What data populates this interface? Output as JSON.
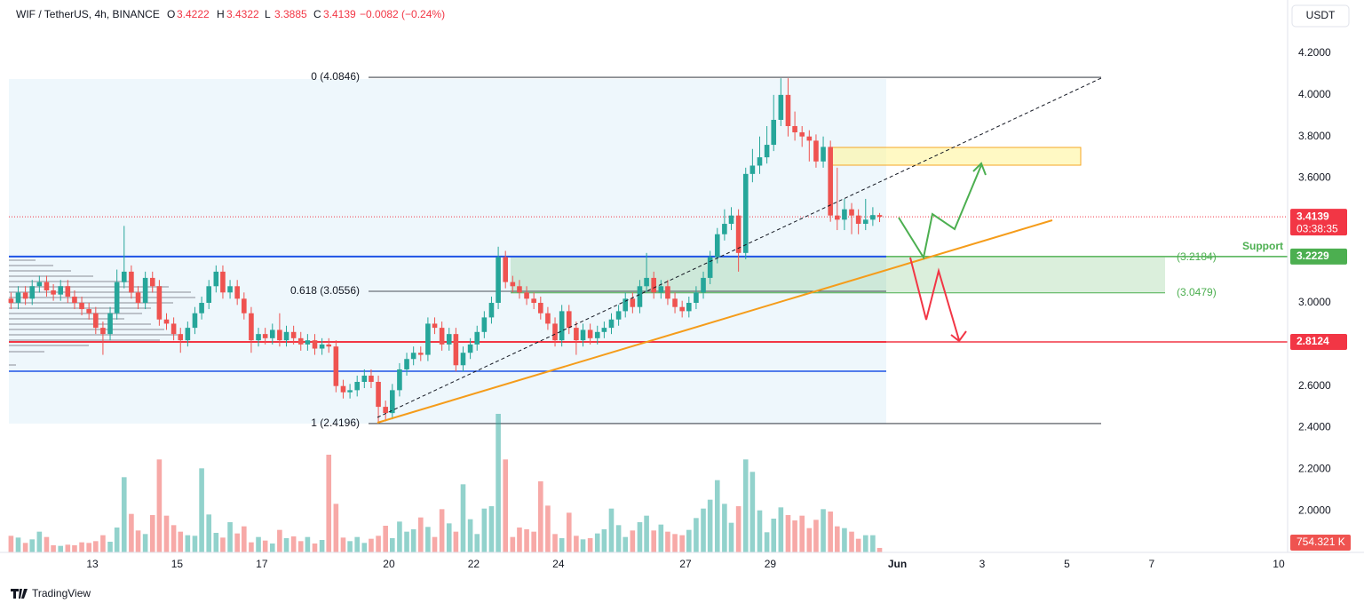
{
  "chart_data": {
    "type": "candlestick",
    "header": {
      "symbol": "WIF / TetherUS, 4h, BINANCE",
      "ohlc": [
        [
          "O",
          "3.4222"
        ],
        [
          "H",
          "3.4322"
        ],
        [
          "L",
          "3.3885"
        ],
        [
          "C",
          "3.4139"
        ]
      ],
      "change": "−0.0082 (−0.24%)"
    },
    "currency": "USDT",
    "up_color": "#26a69a",
    "down_color": "#ef5350",
    "x": [
      11.08,
      11.25,
      11.42,
      11.58,
      11.75,
      11.92,
      12.08,
      12.25,
      12.42,
      12.58,
      12.75,
      12.92,
      13.08,
      13.25,
      13.42,
      13.58,
      13.75,
      13.92,
      14.08,
      14.25,
      14.42,
      14.58,
      14.75,
      14.92,
      15.08,
      15.25,
      15.42,
      15.58,
      15.75,
      15.92,
      16.08,
      16.25,
      16.42,
      16.58,
      16.75,
      16.92,
      17.08,
      17.25,
      17.42,
      17.58,
      17.75,
      17.92,
      18.08,
      18.25,
      18.42,
      18.58,
      18.75,
      18.92,
      19.08,
      19.25,
      19.42,
      19.58,
      19.75,
      19.92,
      20.08,
      20.25,
      20.42,
      20.58,
      20.75,
      20.92,
      21.08,
      21.25,
      21.42,
      21.58,
      21.75,
      21.92,
      22.08,
      22.25,
      22.42,
      22.58,
      22.75,
      22.92,
      23.08,
      23.25,
      23.42,
      23.58,
      23.75,
      23.92,
      24.08,
      24.25,
      24.42,
      24.58,
      24.75,
      24.92,
      25.08,
      25.25,
      25.42,
      25.58,
      25.75,
      25.92,
      26.08,
      26.25,
      26.42,
      26.58,
      26.75,
      26.92,
      27.08,
      27.25,
      27.42,
      27.58,
      27.75,
      27.92,
      28.08,
      28.25,
      28.42,
      28.58,
      28.75,
      28.92,
      29.08,
      29.25,
      29.42,
      29.58,
      29.75,
      29.92,
      30.08,
      30.25,
      30.42,
      30.58,
      30.75,
      30.92,
      31.08,
      31.25,
      31.42,
      31.58
    ],
    "open": [
      3.02,
      3.0,
      3.05,
      3.02,
      3.08,
      3.1,
      3.06,
      3.04,
      3.08,
      3.03,
      3.0,
      2.97,
      2.95,
      2.88,
      2.85,
      2.95,
      3.1,
      3.15,
      3.05,
      3.0,
      3.12,
      3.08,
      2.92,
      2.9,
      2.85,
      2.82,
      2.88,
      2.95,
      3.0,
      3.08,
      3.15,
      3.05,
      3.08,
      3.02,
      2.95,
      2.82,
      2.85,
      2.83,
      2.87,
      2.82,
      2.86,
      2.83,
      2.8,
      2.82,
      2.78,
      2.8,
      2.79,
      2.6,
      2.57,
      2.58,
      2.62,
      2.65,
      2.62,
      2.5,
      2.47,
      2.58,
      2.68,
      2.73,
      2.76,
      2.75,
      2.9,
      2.88,
      2.8,
      2.85,
      2.7,
      2.76,
      2.8,
      2.86,
      2.93,
      3.0,
      3.22,
      3.1,
      3.08,
      3.05,
      3.02,
      3.0,
      2.95,
      2.9,
      2.82,
      2.96,
      2.88,
      2.82,
      2.87,
      2.83,
      2.86,
      2.88,
      2.92,
      2.96,
      3.02,
      2.98,
      3.08,
      3.12,
      3.05,
      3.08,
      3.02,
      2.98,
      2.96,
      3.0,
      3.05,
      3.12,
      3.22,
      3.33,
      3.38,
      3.42,
      3.24,
      3.62,
      3.66,
      3.7,
      3.76,
      3.88,
      4.0,
      3.85,
      3.82,
      3.8,
      3.78,
      3.68,
      3.75,
      3.42,
      3.4,
      3.45,
      3.42,
      3.38,
      3.4,
      3.4222
    ],
    "high": [
      3.05,
      3.08,
      3.08,
      3.11,
      3.13,
      3.13,
      3.09,
      3.11,
      3.11,
      3.06,
      3.03,
      3.0,
      2.98,
      2.91,
      2.98,
      3.16,
      3.37,
      3.18,
      3.08,
      3.15,
      3.15,
      3.11,
      2.95,
      2.93,
      2.88,
      2.91,
      2.98,
      3.03,
      3.11,
      3.18,
      3.18,
      3.11,
      3.11,
      3.05,
      2.98,
      2.88,
      2.88,
      2.9,
      2.95,
      2.89,
      2.89,
      2.86,
      2.85,
      2.85,
      2.83,
      2.83,
      2.82,
      2.63,
      2.61,
      2.65,
      2.68,
      2.68,
      2.65,
      2.53,
      2.61,
      2.71,
      2.76,
      2.79,
      2.79,
      2.93,
      2.93,
      2.91,
      2.88,
      2.88,
      2.79,
      2.83,
      2.89,
      2.96,
      3.03,
      3.27,
      3.25,
      3.13,
      3.11,
      3.08,
      3.05,
      3.03,
      2.98,
      2.93,
      2.99,
      2.99,
      2.91,
      2.9,
      2.9,
      2.89,
      2.91,
      2.95,
      2.99,
      3.05,
      3.05,
      3.11,
      3.24,
      3.15,
      3.11,
      3.11,
      3.05,
      3.01,
      3.03,
      3.08,
      3.15,
      3.25,
      3.36,
      3.45,
      3.46,
      3.45,
      3.65,
      3.74,
      3.8,
      3.85,
      4.0,
      4.08,
      4.08,
      3.92,
      3.85,
      3.83,
      3.81,
      3.8,
      3.78,
      3.65,
      3.5,
      3.48,
      3.45,
      3.5,
      3.46,
      3.4322
    ],
    "low": [
      2.97,
      2.97,
      2.99,
      2.99,
      3.05,
      3.03,
      3.01,
      3.01,
      3.0,
      2.97,
      2.94,
      2.92,
      2.85,
      2.75,
      2.82,
      2.92,
      3.07,
      3.02,
      2.97,
      2.97,
      3.05,
      2.89,
      2.87,
      2.82,
      2.76,
      2.79,
      2.85,
      2.92,
      2.97,
      3.05,
      3.02,
      3.02,
      2.99,
      2.92,
      2.76,
      2.79,
      2.8,
      2.8,
      2.79,
      2.79,
      2.8,
      2.77,
      2.77,
      2.75,
      2.75,
      2.76,
      2.57,
      2.54,
      2.54,
      2.55,
      2.59,
      2.59,
      2.42,
      2.43,
      2.44,
      2.55,
      2.65,
      2.7,
      2.72,
      2.72,
      2.85,
      2.77,
      2.77,
      2.67,
      2.67,
      2.73,
      2.77,
      2.83,
      2.9,
      2.97,
      3.07,
      3.05,
      3.02,
      2.99,
      2.97,
      2.92,
      2.87,
      2.79,
      2.79,
      2.85,
      2.75,
      2.79,
      2.8,
      2.8,
      2.83,
      2.85,
      2.89,
      2.93,
      2.95,
      2.95,
      3.05,
      3.02,
      3.02,
      2.99,
      2.95,
      2.93,
      2.93,
      2.97,
      3.02,
      3.09,
      3.19,
      3.3,
      3.35,
      3.15,
      3.21,
      3.58,
      3.62,
      3.67,
      3.73,
      3.85,
      3.8,
      3.78,
      3.75,
      3.68,
      3.65,
      3.65,
      3.39,
      3.35,
      3.35,
      3.33,
      3.33,
      3.35,
      3.37,
      3.3885
    ],
    "close": [
      3.0,
      3.05,
      3.02,
      3.08,
      3.1,
      3.06,
      3.04,
      3.08,
      3.03,
      3.0,
      2.97,
      2.95,
      2.88,
      2.85,
      2.95,
      3.1,
      3.15,
      3.05,
      3.0,
      3.12,
      3.08,
      2.92,
      2.9,
      2.85,
      2.82,
      2.88,
      2.95,
      3.0,
      3.08,
      3.15,
      3.05,
      3.08,
      3.02,
      2.95,
      2.82,
      2.85,
      2.83,
      2.87,
      2.82,
      2.86,
      2.83,
      2.8,
      2.82,
      2.78,
      2.8,
      2.79,
      2.6,
      2.57,
      2.58,
      2.62,
      2.65,
      2.62,
      2.5,
      2.47,
      2.58,
      2.68,
      2.73,
      2.76,
      2.75,
      2.9,
      2.88,
      2.8,
      2.85,
      2.7,
      2.76,
      2.8,
      2.86,
      2.93,
      3.0,
      3.22,
      3.1,
      3.08,
      3.05,
      3.02,
      3.0,
      2.95,
      2.9,
      2.82,
      2.96,
      2.88,
      2.82,
      2.87,
      2.83,
      2.86,
      2.88,
      2.92,
      2.96,
      3.02,
      2.98,
      3.08,
      3.12,
      3.05,
      3.08,
      3.02,
      2.98,
      2.96,
      3.0,
      3.05,
      3.12,
      3.22,
      3.33,
      3.38,
      3.42,
      3.24,
      3.62,
      3.66,
      3.7,
      3.76,
      3.88,
      4.0,
      3.85,
      3.82,
      3.8,
      3.78,
      3.68,
      3.75,
      3.42,
      3.4,
      3.45,
      3.42,
      3.38,
      3.4,
      3.4221,
      3.4139
    ],
    "volume": [
      2800,
      2500,
      1600,
      2200,
      3500,
      2600,
      1200,
      1100,
      1300,
      1200,
      1700,
      1600,
      1900,
      2900,
      1800,
      4200,
      12700,
      6500,
      3700,
      3100,
      6300,
      15700,
      6200,
      4600,
      3500,
      2900,
      2800,
      14200,
      6400,
      3300,
      2500,
      5100,
      3200,
      4400,
      1700,
      2600,
      2000,
      1500,
      3800,
      2400,
      2700,
      1900,
      2600,
      1500,
      2100,
      16500,
      8200,
      2500,
      1900,
      2600,
      1600,
      2300,
      2800,
      4500,
      2400,
      5200,
      3500,
      3900,
      5900,
      4300,
      2600,
      7300,
      4900,
      3500,
      11500,
      5600,
      3100,
      7400,
      7800,
      23400,
      15700,
      2600,
      4200,
      3900,
      3500,
      12000,
      7900,
      3100,
      2400,
      6700,
      2800,
      2200,
      2400,
      3200,
      3900,
      7400,
      4600,
      2600,
      3700,
      5100,
      6200,
      3700,
      4700,
      3500,
      3100,
      2900,
      3800,
      5800,
      7400,
      8900,
      12200,
      8200,
      5000,
      7800,
      15700,
      13600,
      7100,
      3400,
      5700,
      7600,
      6300,
      5400,
      6200,
      4100,
      5500,
      7300,
      6900,
      4400,
      4100,
      3500,
      2300,
      2900,
      2900,
      754
    ],
    "volume_lim": [
      0,
      24000
    ],
    "volume_label": "754.321 K",
    "xlim": [
      11.03,
      41.21
    ],
    "xticks": [
      13,
      15,
      17,
      20,
      22,
      24,
      27,
      29,
      {
        "value": 32,
        "label": "Jun"
      },
      {
        "value": 34,
        "label": "3"
      },
      {
        "value": 36,
        "label": "5"
      },
      {
        "value": 38,
        "label": "7"
      },
      {
        "value": 41,
        "label": "10"
      }
    ],
    "ylim": [
      1.8,
      4.45
    ],
    "yticks": [
      {
        "value": 2,
        "label": "2.0000"
      },
      {
        "value": 2.2,
        "label": "2.2000"
      },
      {
        "value": 2.4,
        "label": "2.4000"
      },
      {
        "value": 2.6,
        "label": "2.6000"
      },
      {
        "value": 2.8,
        "label": "2.8000"
      },
      {
        "value": 3,
        "label": "3.0000"
      },
      {
        "value": 3.2,
        "label": "3.2000"
      },
      {
        "value": 3.4,
        "label": "3.4000"
      },
      {
        "value": 3.6,
        "label": "3.6000"
      },
      {
        "value": 3.8,
        "label": "3.8000"
      },
      {
        "value": 4,
        "label": "4.0000"
      },
      {
        "value": 4.2,
        "label": "4.2000"
      }
    ],
    "fib_levels": [
      {
        "label": "0 (4.0846)",
        "value": 4.0846
      },
      {
        "label": "0.618 (3.0556)",
        "value": 3.0556
      },
      {
        "label": "1 (2.4196)",
        "value": 2.4196
      }
    ],
    "zone": {
      "top": {
        "value": 3.2184,
        "label": "(3.2184)"
      },
      "bottom": {
        "value": 3.0479,
        "label": "(3.0479)"
      }
    },
    "levels": [
      {
        "value": 3.2229,
        "label": "3.2229",
        "line_color": "#1e53e5",
        "badge_color": "#4caf50"
      },
      {
        "value": 2.8124,
        "label": "2.8124",
        "line_color": "#f23645",
        "badge_color": "#f23645"
      }
    ],
    "support_label": "Support",
    "current": {
      "value": 3.4139,
      "label": "3.4139",
      "countdown": "03:38:35",
      "color": "#f23645"
    },
    "brand": "TradingView"
  }
}
